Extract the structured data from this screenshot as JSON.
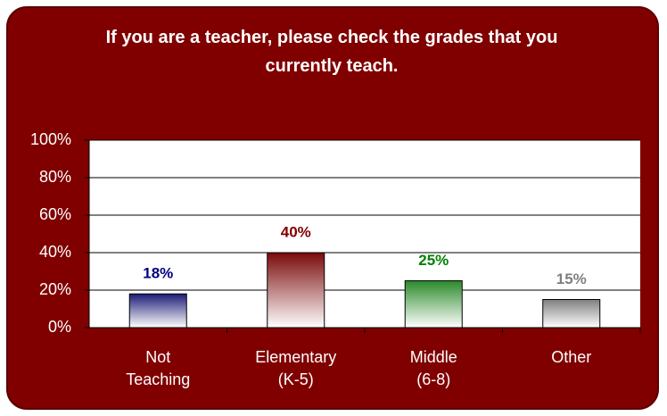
{
  "chart_data": {
    "type": "bar",
    "title": "If you are a teacher, please check the grades that you currently teach.",
    "categories": [
      "Not Teaching",
      "Elementary (K-5)",
      "Middle (6-8)",
      "Other"
    ],
    "values": [
      18,
      40,
      25,
      15
    ],
    "value_labels": [
      "18%",
      "40%",
      "25%",
      "15%"
    ],
    "colors": [
      "#1c1c78",
      "#7a0a0a",
      "#2a8a2a",
      "#7f7f7f"
    ],
    "label_colors": [
      "#000080",
      "#800000",
      "#008000",
      "#808080"
    ],
    "ylim": [
      0,
      100
    ],
    "yticks": [
      {
        "value": 0,
        "label": "0%"
      },
      {
        "value": 20,
        "label": "20%"
      },
      {
        "value": 40,
        "label": "40%"
      },
      {
        "value": 60,
        "label": "60%"
      },
      {
        "value": 80,
        "label": "80%"
      },
      {
        "value": 100,
        "label": "100%"
      }
    ],
    "grid": true
  }
}
